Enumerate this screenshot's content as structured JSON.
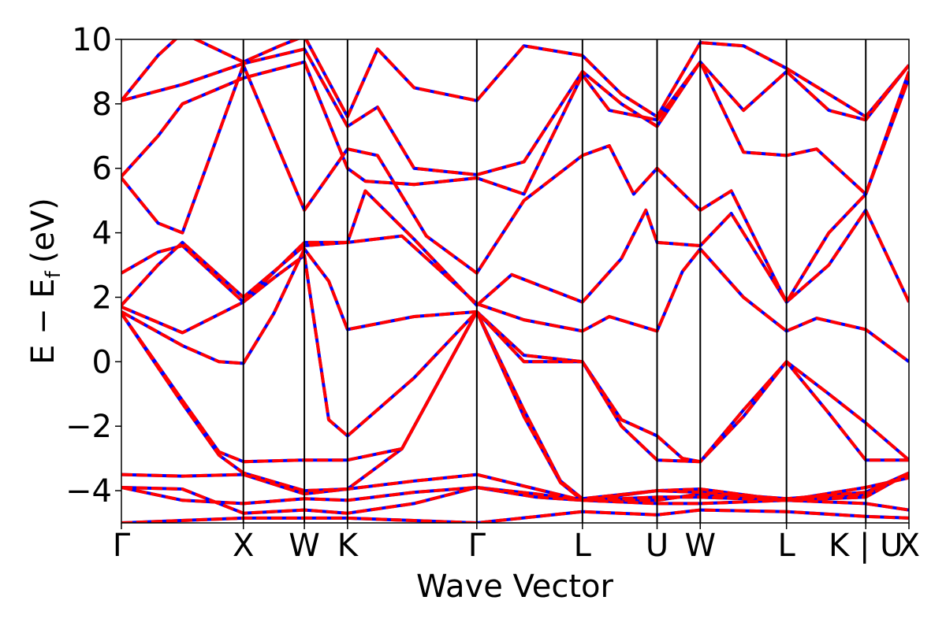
{
  "chart_data": {
    "type": "line",
    "title": "",
    "xlabel": "Wave Vector",
    "ylabel": "E − E",
    "ylabel_subscript": "f",
    "ylabel_unit": "(eV)",
    "ylim": [
      -5,
      10
    ],
    "yticks": [
      10,
      8,
      6,
      4,
      2,
      0,
      -2,
      -4
    ],
    "ytick_labels": [
      "10",
      "8",
      "6",
      "4",
      "2",
      "0",
      "−2",
      "−4"
    ],
    "grid": false,
    "legend": "none",
    "kpath": [
      {
        "label": "Γ",
        "x": 0.0
      },
      {
        "label": "X",
        "x": 1.0
      },
      {
        "label": "W",
        "x": 1.5
      },
      {
        "label": "K",
        "x": 1.854
      },
      {
        "label": "Γ",
        "x": 2.914
      },
      {
        "label": "L",
        "x": 3.78
      },
      {
        "label": "U",
        "x": 4.392
      },
      {
        "label": "W",
        "x": 4.746
      },
      {
        "label": "L",
        "x": 5.453
      },
      {
        "label": "K | U",
        "x": 6.103
      },
      {
        "label": "X",
        "x": 6.457
      }
    ],
    "series_styles": [
      {
        "color": "#0000ff",
        "style": "solid"
      },
      {
        "color": "#ff0000",
        "style": "dashed"
      }
    ],
    "bands": [
      [
        [
          0,
          -5.0
        ],
        [
          1,
          -4.85
        ],
        [
          1.5,
          -4.85
        ],
        [
          1.854,
          -4.85
        ],
        [
          2.914,
          -5.0
        ],
        [
          3.78,
          -4.65
        ],
        [
          4.392,
          -4.75
        ],
        [
          4.746,
          -4.6
        ],
        [
          5.453,
          -4.65
        ],
        [
          6.103,
          -4.8
        ],
        [
          6.457,
          -4.85
        ]
      ],
      [
        [
          0,
          -3.9
        ],
        [
          0.5,
          -3.95
        ],
        [
          1,
          -4.7
        ],
        [
          1.5,
          -4.6
        ],
        [
          1.854,
          -4.7
        ],
        [
          2.4,
          -4.4
        ],
        [
          2.914,
          -3.9
        ],
        [
          3.4,
          -4.1
        ],
        [
          3.78,
          -4.3
        ],
        [
          4.392,
          -4.2
        ],
        [
          4.746,
          -4.2
        ],
        [
          5.453,
          -4.3
        ],
        [
          6.103,
          -4.2
        ],
        [
          6.457,
          -3.45
        ]
      ],
      [
        [
          0,
          -3.9
        ],
        [
          0.5,
          -4.3
        ],
        [
          1,
          -4.4
        ],
        [
          1.5,
          -4.25
        ],
        [
          1.854,
          -4.3
        ],
        [
          2.4,
          -4.05
        ],
        [
          2.914,
          -3.9
        ],
        [
          3.4,
          -4.2
        ],
        [
          3.78,
          -4.3
        ],
        [
          4.392,
          -4.4
        ],
        [
          4.746,
          -4.4
        ],
        [
          5.453,
          -4.3
        ],
        [
          6.103,
          -4.4
        ],
        [
          6.457,
          -4.6
        ]
      ],
      [
        [
          0,
          -3.5
        ],
        [
          0.5,
          -3.55
        ],
        [
          1,
          -3.5
        ],
        [
          1.5,
          -4.1
        ],
        [
          1.854,
          -3.95
        ],
        [
          2.4,
          -3.7
        ],
        [
          2.914,
          -3.5
        ],
        [
          3.4,
          -3.95
        ],
        [
          3.78,
          -4.3
        ],
        [
          4.392,
          -4.0
        ],
        [
          4.746,
          -3.95
        ],
        [
          5.453,
          -4.3
        ],
        [
          6.103,
          -3.9
        ],
        [
          6.457,
          -3.6
        ]
      ],
      [
        [
          0,
          1.5
        ],
        [
          0.5,
          -1.2
        ],
        [
          0.8,
          -2.8
        ],
        [
          1,
          -3.1
        ],
        [
          1.5,
          -3.05
        ],
        [
          1.854,
          -3.05
        ],
        [
          2.3,
          -2.7
        ],
        [
          2.914,
          1.55
        ],
        [
          3.3,
          -1.5
        ],
        [
          3.6,
          -3.7
        ],
        [
          3.78,
          -4.25
        ],
        [
          4.392,
          -4.0
        ],
        [
          4.746,
          -4.05
        ],
        [
          5.453,
          -4.25
        ],
        [
          6.103,
          -4.05
        ],
        [
          6.457,
          -3.45
        ]
      ],
      [
        [
          0,
          1.5
        ],
        [
          0.5,
          -1.3
        ],
        [
          0.8,
          -2.9
        ],
        [
          1,
          -3.45
        ],
        [
          1.5,
          -4.0
        ],
        [
          1.854,
          -3.95
        ],
        [
          2.3,
          -2.7
        ],
        [
          2.914,
          1.55
        ],
        [
          3.3,
          -1.7
        ],
        [
          3.6,
          -3.75
        ],
        [
          3.78,
          -4.3
        ],
        [
          4.392,
          -4.3
        ],
        [
          4.746,
          -4.1
        ],
        [
          5.453,
          -4.3
        ],
        [
          6.103,
          -4.1
        ],
        [
          6.457,
          -3.5
        ]
      ],
      [
        [
          0,
          1.55
        ],
        [
          0.5,
          0.5
        ],
        [
          0.8,
          0.0
        ],
        [
          1,
          -0.05
        ],
        [
          1.25,
          1.5
        ],
        [
          1.5,
          3.5
        ],
        [
          1.7,
          2.5
        ],
        [
          1.854,
          1.0
        ],
        [
          2.4,
          1.4
        ],
        [
          2.914,
          1.55
        ],
        [
          3.3,
          0.2
        ],
        [
          3.78,
          0.0
        ],
        [
          4.1,
          -1.8
        ],
        [
          4.392,
          -2.3
        ],
        [
          4.6,
          -3.0
        ],
        [
          4.746,
          -3.1
        ],
        [
          5.1,
          -1.5
        ],
        [
          5.453,
          0.0
        ],
        [
          5.8,
          -1.6
        ],
        [
          6.103,
          -3.05
        ],
        [
          6.457,
          -3.05
        ]
      ],
      [
        [
          0,
          1.7
        ],
        [
          0.5,
          0.9
        ],
        [
          1,
          1.85
        ],
        [
          1.25,
          2.6
        ],
        [
          1.5,
          3.3
        ],
        [
          1.7,
          -1.8
        ],
        [
          1.854,
          -2.3
        ],
        [
          2.4,
          -0.5
        ],
        [
          2.914,
          1.55
        ],
        [
          3.3,
          0.0
        ],
        [
          3.78,
          0.0
        ],
        [
          4.1,
          -2.0
        ],
        [
          4.392,
          -3.05
        ],
        [
          4.746,
          -3.1
        ],
        [
          5.1,
          -1.7
        ],
        [
          5.453,
          0.0
        ],
        [
          5.8,
          -1.0
        ],
        [
          6.103,
          -1.9
        ],
        [
          6.457,
          -3.05
        ]
      ],
      [
        [
          0,
          1.75
        ],
        [
          0.3,
          3.0
        ],
        [
          0.5,
          3.7
        ],
        [
          1,
          2.0
        ],
        [
          1.5,
          3.6
        ],
        [
          1.854,
          3.7
        ],
        [
          2.3,
          3.9
        ],
        [
          2.914,
          1.8
        ],
        [
          3.3,
          1.3
        ],
        [
          3.78,
          0.95
        ],
        [
          4.0,
          1.4
        ],
        [
          4.392,
          0.95
        ],
        [
          4.6,
          2.8
        ],
        [
          4.746,
          3.5
        ],
        [
          5.1,
          2.0
        ],
        [
          5.453,
          0.95
        ],
        [
          5.7,
          1.35
        ],
        [
          6.103,
          1.0
        ],
        [
          6.457,
          0.0
        ]
      ],
      [
        [
          0,
          2.75
        ],
        [
          0.3,
          3.4
        ],
        [
          0.5,
          3.6
        ],
        [
          1,
          1.85
        ],
        [
          1.5,
          3.7
        ],
        [
          1.854,
          3.7
        ],
        [
          2.0,
          5.3
        ],
        [
          2.4,
          3.8
        ],
        [
          2.914,
          1.75
        ],
        [
          3.2,
          2.7
        ],
        [
          3.78,
          1.85
        ],
        [
          4.1,
          3.2
        ],
        [
          4.3,
          4.7
        ],
        [
          4.392,
          3.7
        ],
        [
          4.746,
          3.6
        ],
        [
          5.0,
          4.6
        ],
        [
          5.453,
          1.85
        ],
        [
          5.8,
          3.0
        ],
        [
          6.103,
          4.7
        ],
        [
          6.457,
          1.85
        ]
      ],
      [
        [
          0,
          5.7
        ],
        [
          0.3,
          4.3
        ],
        [
          0.5,
          4.0
        ],
        [
          1,
          9.2
        ],
        [
          1.5,
          4.7
        ],
        [
          1.854,
          6.6
        ],
        [
          2.1,
          6.4
        ],
        [
          2.5,
          3.9
        ],
        [
          2.914,
          2.75
        ],
        [
          3.3,
          5.0
        ],
        [
          3.78,
          6.4
        ],
        [
          4.0,
          6.7
        ],
        [
          4.2,
          5.2
        ],
        [
          4.392,
          6.0
        ],
        [
          4.746,
          4.7
        ],
        [
          5.0,
          5.3
        ],
        [
          5.453,
          1.85
        ],
        [
          5.8,
          4.0
        ],
        [
          6.103,
          5.2
        ],
        [
          6.457,
          9.0
        ]
      ],
      [
        [
          0,
          5.75
        ],
        [
          0.3,
          7.0
        ],
        [
          0.5,
          8.0
        ],
        [
          1,
          8.8
        ],
        [
          1.5,
          9.3
        ],
        [
          1.854,
          6.0
        ],
        [
          2.0,
          5.6
        ],
        [
          2.4,
          5.5
        ],
        [
          2.914,
          5.7
        ],
        [
          3.3,
          5.2
        ],
        [
          3.78,
          8.9
        ],
        [
          4.0,
          7.8
        ],
        [
          4.392,
          7.5
        ],
        [
          4.746,
          9.3
        ],
        [
          5.1,
          6.5
        ],
        [
          5.453,
          6.4
        ],
        [
          5.7,
          6.6
        ],
        [
          6.103,
          5.2
        ],
        [
          6.457,
          8.8
        ]
      ],
      [
        [
          0,
          8.1
        ],
        [
          0.5,
          8.6
        ],
        [
          1,
          9.25
        ],
        [
          1.5,
          9.7
        ],
        [
          1.854,
          7.3
        ],
        [
          2.1,
          7.9
        ],
        [
          2.4,
          6.0
        ],
        [
          2.914,
          5.8
        ],
        [
          3.3,
          6.2
        ],
        [
          3.78,
          9.0
        ],
        [
          4.1,
          8.0
        ],
        [
          4.392,
          7.3
        ],
        [
          4.746,
          9.3
        ],
        [
          5.1,
          7.8
        ],
        [
          5.453,
          9.0
        ],
        [
          5.8,
          7.8
        ],
        [
          6.103,
          7.5
        ],
        [
          6.457,
          9.2
        ]
      ],
      [
        [
          0,
          8.1
        ],
        [
          0.3,
          9.5
        ],
        [
          0.5,
          10.2
        ],
        [
          1,
          9.3
        ],
        [
          1.3,
          9.8
        ],
        [
          1.5,
          10.1
        ],
        [
          1.854,
          7.6
        ],
        [
          2.1,
          9.7
        ],
        [
          2.4,
          8.5
        ],
        [
          2.914,
          8.1
        ],
        [
          3.3,
          9.8
        ],
        [
          3.78,
          9.5
        ],
        [
          4.1,
          8.3
        ],
        [
          4.392,
          7.6
        ],
        [
          4.746,
          9.9
        ],
        [
          5.1,
          9.8
        ],
        [
          5.453,
          9.1
        ],
        [
          5.8,
          8.3
        ],
        [
          6.103,
          7.6
        ],
        [
          6.457,
          9.2
        ]
      ]
    ]
  }
}
